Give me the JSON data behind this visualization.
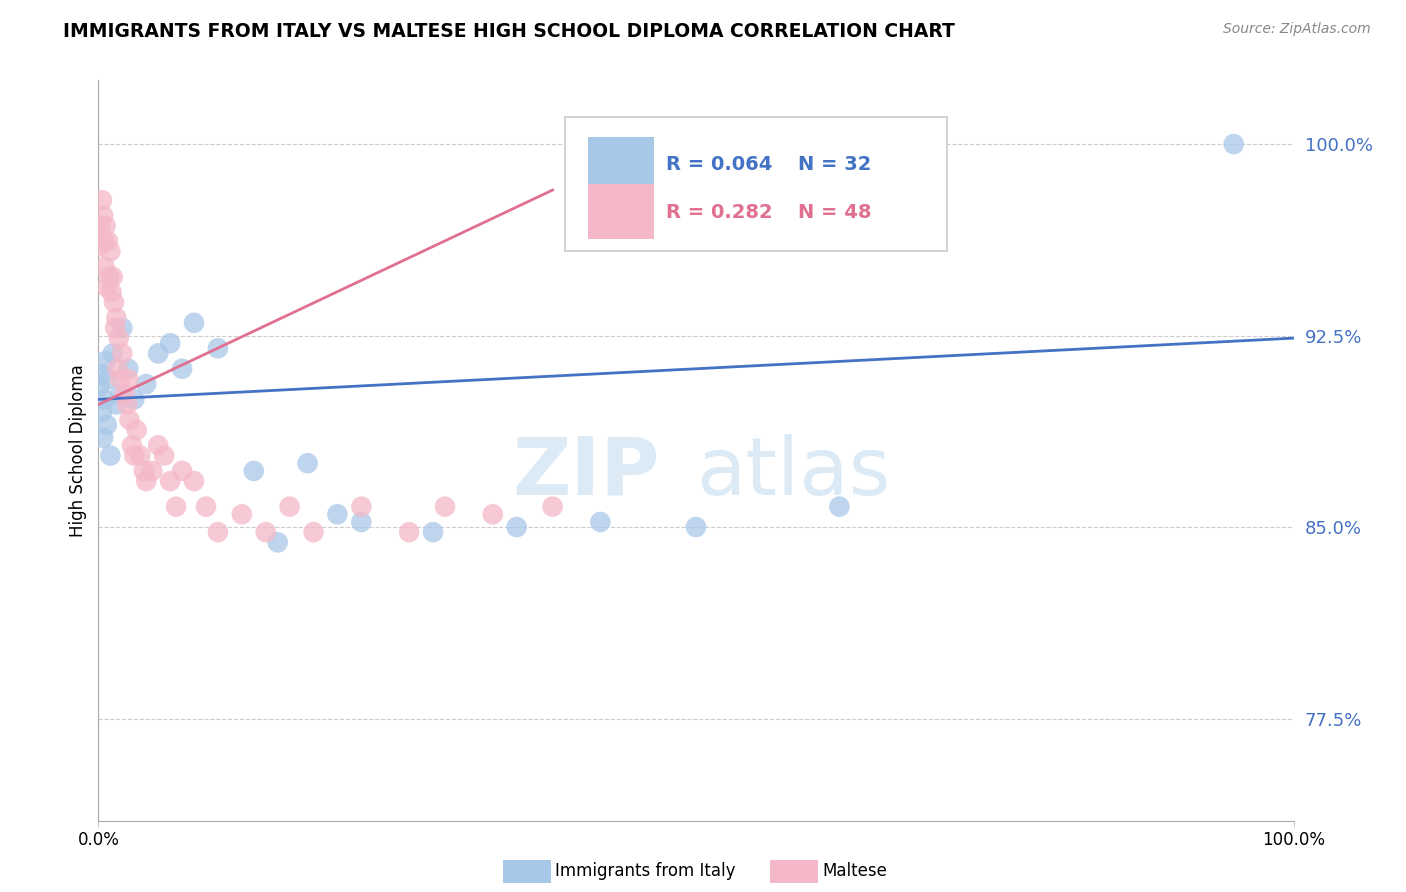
{
  "title": "IMMIGRANTS FROM ITALY VS MALTESE HIGH SCHOOL DIPLOMA CORRELATION CHART",
  "source": "Source: ZipAtlas.com",
  "ylabel": "High School Diploma",
  "ytick_vals": [
    0.775,
    0.85,
    0.925,
    1.0
  ],
  "ytick_labels": [
    "77.5%",
    "85.0%",
    "92.5%",
    "100.0%"
  ],
  "xlim": [
    0.0,
    1.0
  ],
  "ylim": [
    0.735,
    1.025
  ],
  "legend_blue_r": "R = 0.064",
  "legend_blue_n": "N = 32",
  "legend_pink_r": "R = 0.282",
  "legend_pink_n": "N = 48",
  "legend_label_blue": "Immigrants from Italy",
  "legend_label_pink": "Maltese",
  "blue_color": "#a8c8e8",
  "pink_color": "#f4b8c8",
  "trendline_blue_color": "#4472c4",
  "trendline_pink_color": "#e07090",
  "watermark_top": "ZIP",
  "watermark_bottom": "atlas",
  "blue_scatter_x": [
    0.001,
    0.002,
    0.003,
    0.004,
    0.005,
    0.006,
    0.007,
    0.008,
    0.01,
    0.012,
    0.015,
    0.018,
    0.02,
    0.025,
    0.03,
    0.04,
    0.05,
    0.06,
    0.07,
    0.08,
    0.1,
    0.13,
    0.15,
    0.175,
    0.2,
    0.22,
    0.28,
    0.35,
    0.42,
    0.5,
    0.62,
    0.95
  ],
  "blue_scatter_y": [
    0.905,
    0.91,
    0.895,
    0.885,
    0.9,
    0.915,
    0.89,
    0.908,
    0.878,
    0.918,
    0.898,
    0.902,
    0.928,
    0.912,
    0.9,
    0.906,
    0.918,
    0.922,
    0.912,
    0.93,
    0.92,
    0.872,
    0.844,
    0.875,
    0.855,
    0.852,
    0.848,
    0.85,
    0.852,
    0.85,
    0.858,
    1.0
  ],
  "pink_scatter_x": [
    0.001,
    0.002,
    0.003,
    0.004,
    0.005,
    0.005,
    0.006,
    0.007,
    0.008,
    0.009,
    0.01,
    0.011,
    0.012,
    0.013,
    0.014,
    0.015,
    0.016,
    0.017,
    0.018,
    0.02,
    0.022,
    0.024,
    0.025,
    0.026,
    0.028,
    0.03,
    0.032,
    0.035,
    0.038,
    0.04,
    0.045,
    0.05,
    0.055,
    0.06,
    0.065,
    0.07,
    0.08,
    0.09,
    0.1,
    0.12,
    0.14,
    0.16,
    0.18,
    0.22,
    0.26,
    0.29,
    0.33,
    0.38
  ],
  "pink_scatter_y": [
    0.96,
    0.968,
    0.978,
    0.972,
    0.962,
    0.952,
    0.968,
    0.944,
    0.962,
    0.948,
    0.958,
    0.942,
    0.948,
    0.938,
    0.928,
    0.932,
    0.912,
    0.924,
    0.908,
    0.918,
    0.902,
    0.898,
    0.908,
    0.892,
    0.882,
    0.878,
    0.888,
    0.878,
    0.872,
    0.868,
    0.872,
    0.882,
    0.878,
    0.868,
    0.858,
    0.872,
    0.868,
    0.858,
    0.848,
    0.855,
    0.848,
    0.858,
    0.848,
    0.858,
    0.848,
    0.858,
    0.855,
    0.858
  ],
  "blue_trend_x0": 0.0,
  "blue_trend_x1": 1.0,
  "blue_trend_y0": 0.9,
  "blue_trend_y1": 0.924,
  "pink_trend_x0": 0.0,
  "pink_trend_x1": 0.38,
  "pink_trend_y0": 0.898,
  "pink_trend_y1": 0.982
}
